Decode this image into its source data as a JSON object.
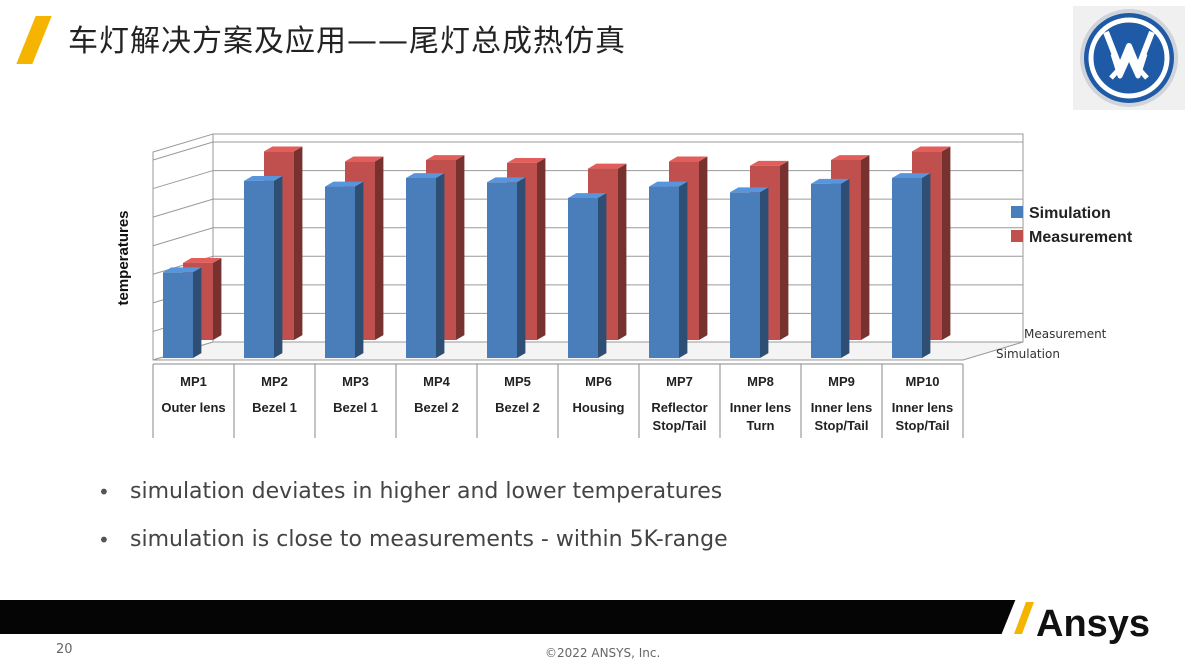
{
  "slide": {
    "title": "车灯解决方案及应用——尾灯总成热仿真",
    "page_number": "20",
    "copyright": "©2022 ANSYS, Inc.",
    "brand": "Ansys",
    "logo": "vw-logo-icon",
    "accent_color": "#f5b400"
  },
  "bullets": [
    "simulation deviates in higher and lower temperatures",
    "simulation is close to measurements - within 5K-range"
  ],
  "chart_data": {
    "type": "bar",
    "title": "",
    "ylabel": "temperatures",
    "xlabel": "",
    "depth_labels": [
      "Measurement",
      "Simulation"
    ],
    "categories": [
      "MP1",
      "MP2",
      "MP3",
      "MP4",
      "MP5",
      "MP6",
      "MP7",
      "MP8",
      "MP9",
      "MP10"
    ],
    "category_descriptions": [
      [
        "Outer lens"
      ],
      [
        "Bezel 1"
      ],
      [
        "Bezel 1"
      ],
      [
        "Bezel 2"
      ],
      [
        "Bezel 2"
      ],
      [
        "Housing"
      ],
      [
        "Reflector",
        "Stop/Tail"
      ],
      [
        "Inner lens",
        "Turn"
      ],
      [
        "Inner lens",
        "Stop/Tail"
      ],
      [
        "Inner lens",
        "Stop/Tail"
      ]
    ],
    "ylim": [
      0,
      7
    ],
    "grid": true,
    "legend_position": "right",
    "series": [
      {
        "name": "Simulation",
        "color": "#4a7ebb",
        "values": [
          3.0,
          6.2,
          6.0,
          6.3,
          6.15,
          5.6,
          6.0,
          5.8,
          6.1,
          6.3
        ]
      },
      {
        "name": "Measurement",
        "color": "#c0504d",
        "values": [
          2.7,
          6.6,
          6.25,
          6.3,
          6.2,
          6.0,
          6.25,
          6.1,
          6.3,
          6.6
        ]
      }
    ]
  }
}
